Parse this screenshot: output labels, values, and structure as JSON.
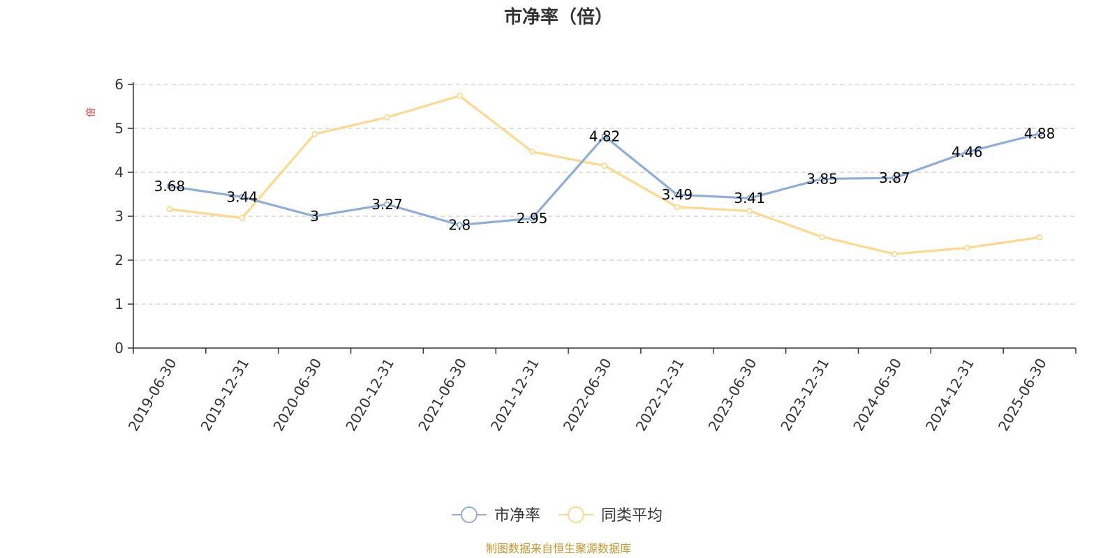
{
  "chart_data": {
    "type": "line",
    "title": "市净率（倍）",
    "ylabel": "倍",
    "ylim": [
      0,
      6
    ],
    "yticks": [
      0,
      1,
      2,
      3,
      4,
      5,
      6
    ],
    "grid": true,
    "legend_position": "bottom",
    "categories": [
      "2019-06-30",
      "2019-12-31",
      "2020-06-30",
      "2020-12-31",
      "2021-06-30",
      "2021-12-31",
      "2022-06-30",
      "2022-12-31",
      "2023-06-30",
      "2023-12-31",
      "2024-06-30",
      "2024-12-31",
      "2025-06-30"
    ],
    "series": [
      {
        "name": "市净率",
        "color": "#8eadd8",
        "values": [
          3.68,
          3.44,
          3,
          3.27,
          2.8,
          2.95,
          4.82,
          3.49,
          3.41,
          3.85,
          3.87,
          4.46,
          4.88
        ],
        "labels": [
          "3.68",
          "3.44",
          "3",
          "3.27",
          "2.8",
          "2.95",
          "4.82",
          "3.49",
          "3.41",
          "3.85",
          "3.87",
          "4.46",
          "4.88"
        ]
      },
      {
        "name": "同类平均",
        "color": "#fcd98e",
        "values": [
          3.16,
          2.96,
          4.87,
          5.25,
          5.74,
          4.47,
          4.15,
          3.21,
          3.12,
          2.53,
          2.14,
          2.28,
          2.52
        ]
      }
    ],
    "source": "制图数据来自恒生聚源数据库",
    "ylabel_color": "#e5323e",
    "source_color": "#c8962c"
  }
}
